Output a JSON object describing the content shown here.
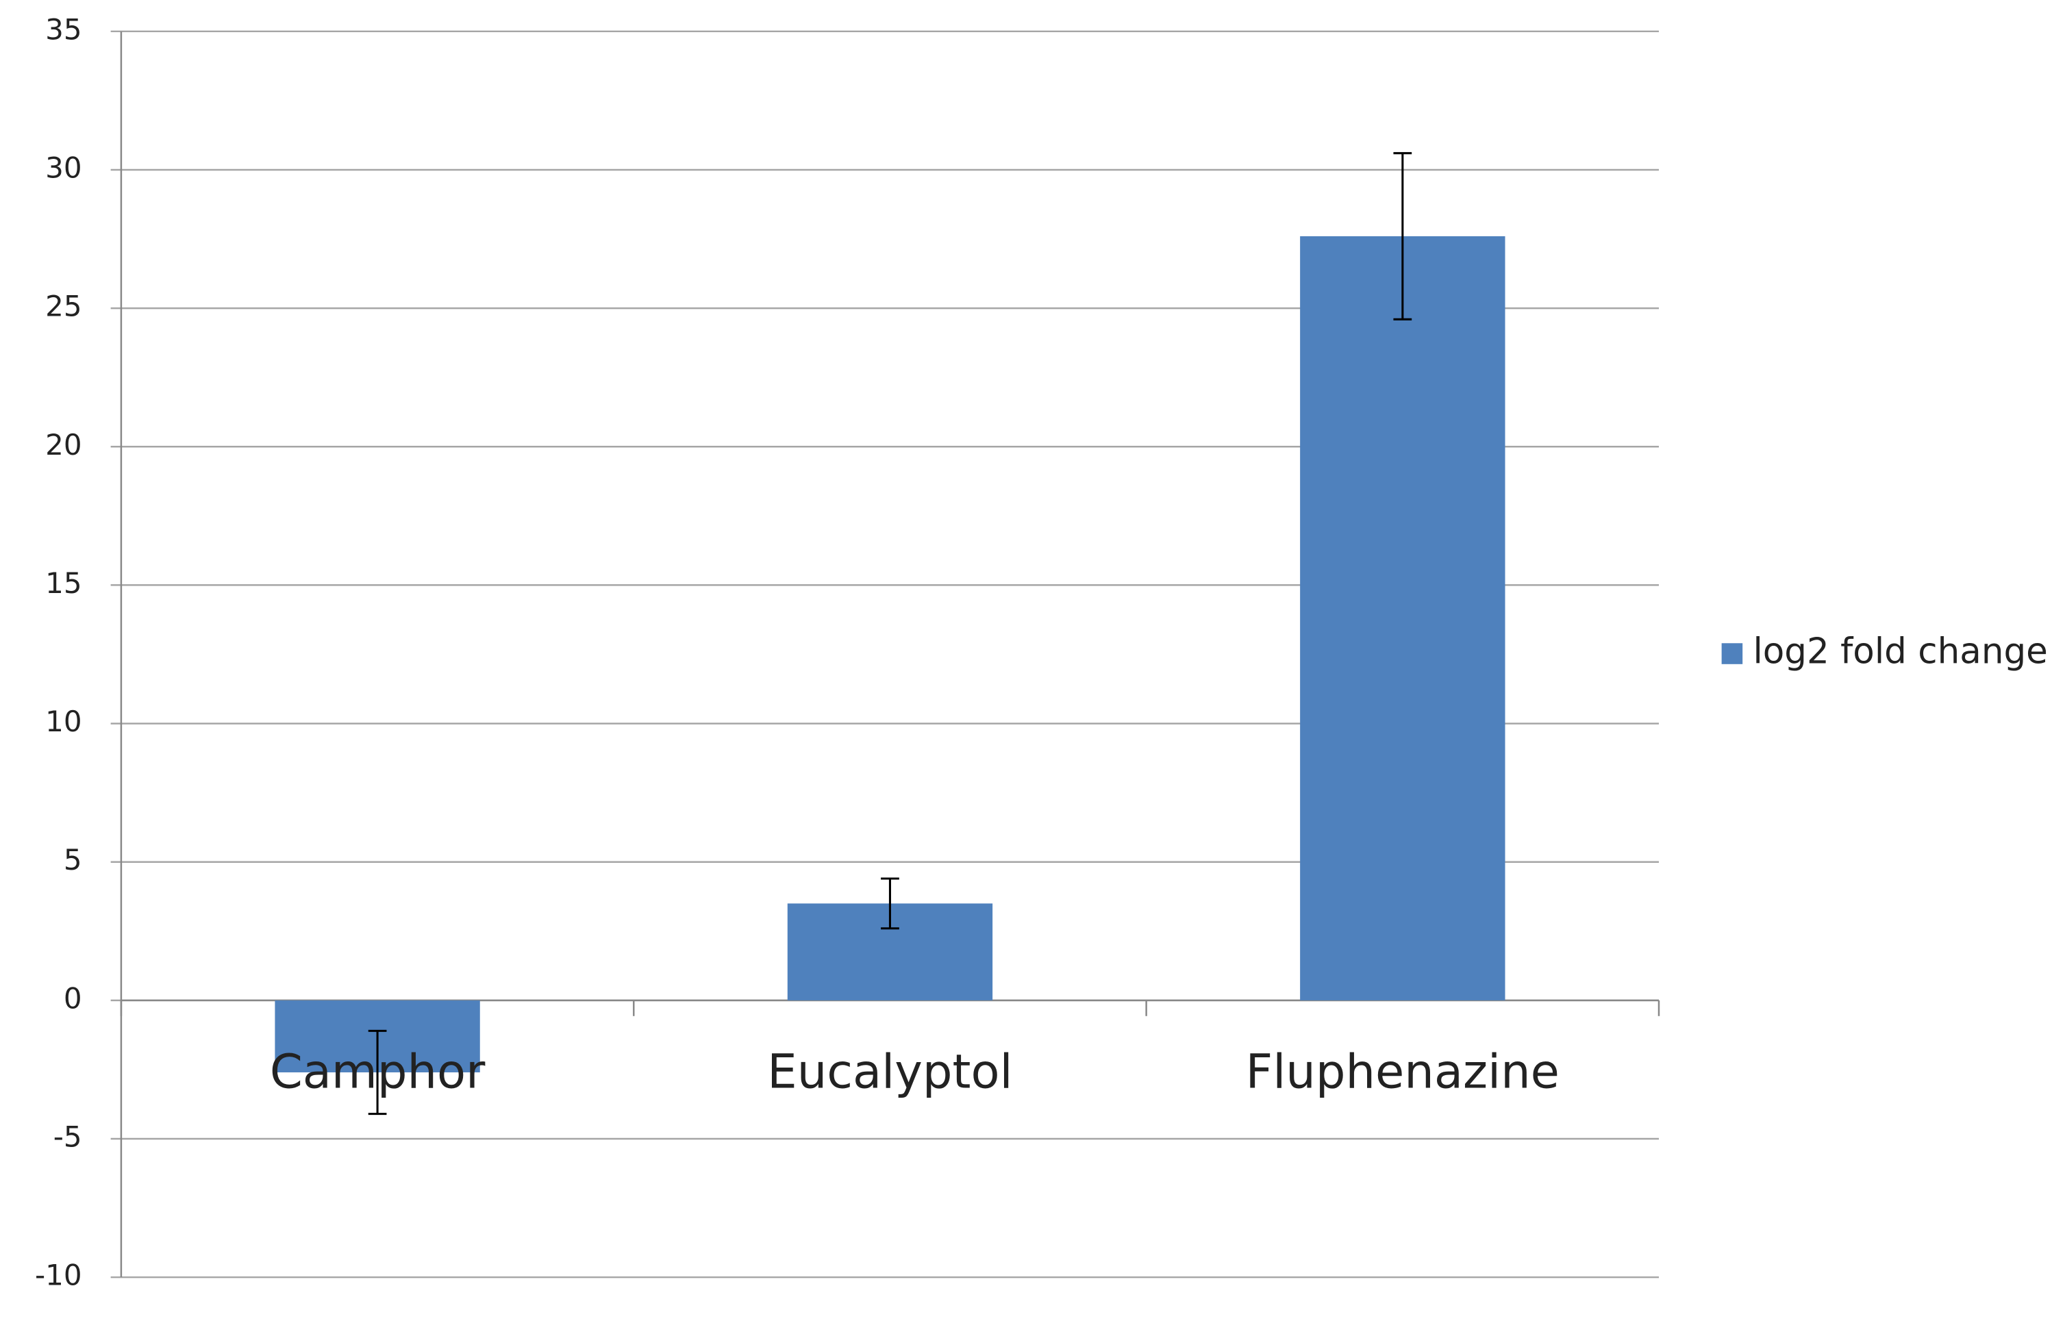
{
  "chart_data": {
    "type": "bar",
    "categories": [
      "Camphor",
      "Eucalyptol",
      "Fluphenazine"
    ],
    "series": [
      {
        "name": "log2 fold change",
        "color": "#4f81bd",
        "values": [
          -2.6,
          3.5,
          27.6
        ],
        "errors": [
          1.5,
          0.9,
          3.0
        ]
      }
    ],
    "ylim": [
      -10,
      35
    ],
    "yticks": [
      -10,
      -5,
      0,
      5,
      10,
      15,
      20,
      25,
      30,
      35
    ],
    "grid": true,
    "legend": "right"
  }
}
